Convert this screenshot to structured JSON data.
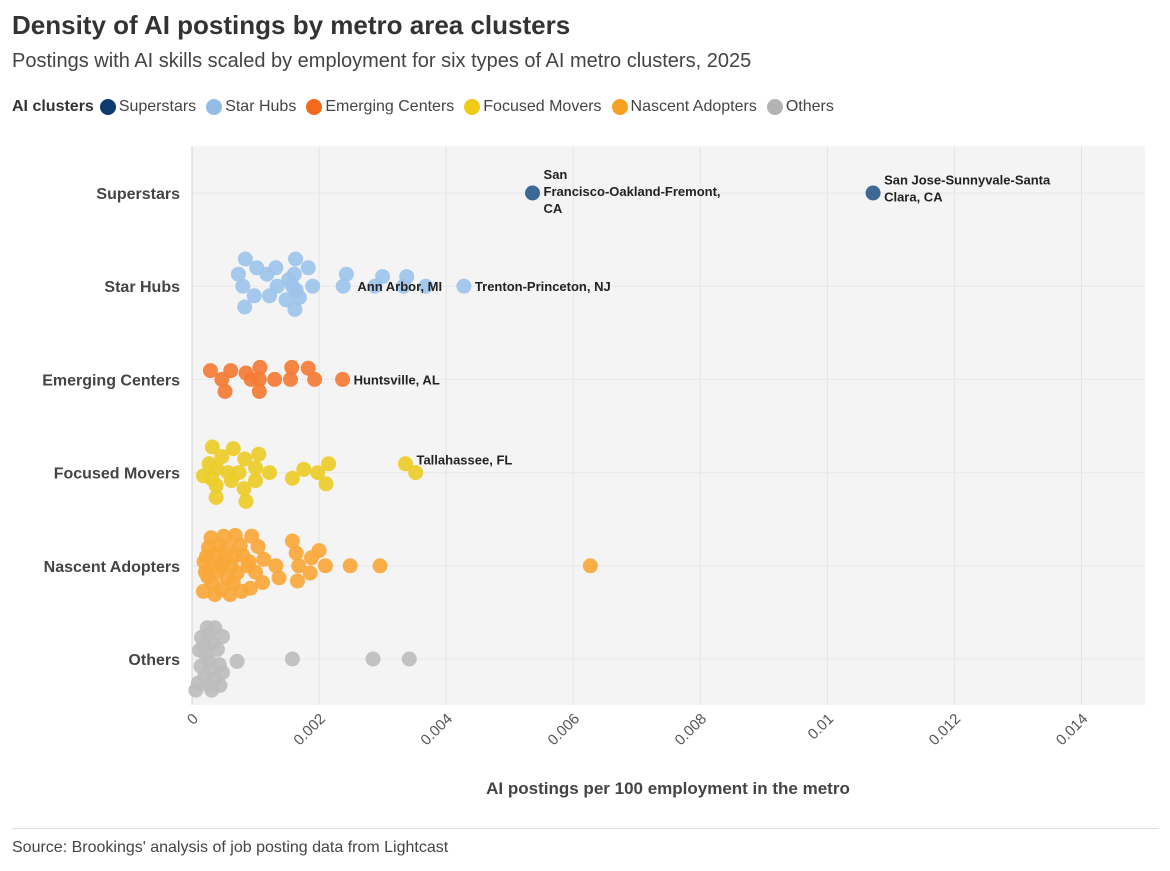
{
  "title": "Density of AI postings by metro area clusters",
  "subtitle": "Postings with AI skills scaled by employment for six types of AI metro clusters, 2025",
  "legend": {
    "title": "AI clusters",
    "items": [
      {
        "label": "Superstars",
        "color": "#0d3b6e"
      },
      {
        "label": "Star Hubs",
        "color": "#93bde8"
      },
      {
        "label": "Emerging Centers",
        "color": "#f26a1b"
      },
      {
        "label": "Focused Movers",
        "color": "#efcb18"
      },
      {
        "label": "Nascent Adopters",
        "color": "#f7a026"
      },
      {
        "label": "Others",
        "color": "#b3b3b3"
      }
    ]
  },
  "source": "Source: Brookings' analysis of job posting data from Lightcast",
  "chart_data": {
    "type": "scatter",
    "title": "Density of AI postings by metro area clusters",
    "xlabel": "AI postings per 100 employment in the metro",
    "ylabel": "",
    "xlim": [
      0,
      0.015
    ],
    "xticks": [
      0,
      0.002,
      0.004,
      0.006,
      0.008,
      0.01,
      0.012,
      0.014
    ],
    "xtick_labels": [
      "0",
      "0.002",
      "0.004",
      "0.006",
      "0.008",
      "0.01",
      "0.012",
      "0.014"
    ],
    "categories": [
      "Superstars",
      "Star Hubs",
      "Emerging Centers",
      "Focused Movers",
      "Nascent Adopters",
      "Others"
    ],
    "series": [
      {
        "name": "Superstars",
        "color": "#2d5a8c",
        "points": [
          {
            "x": 0.00536,
            "j": 0
          },
          {
            "x": 0.01072,
            "j": 0
          }
        ]
      },
      {
        "name": "Star Hubs",
        "color": "#9dc3ec",
        "points": [
          {
            "x": 0.00084,
            "j": -0.34
          },
          {
            "x": 0.00163,
            "j": -0.34
          },
          {
            "x": 0.00102,
            "j": -0.23
          },
          {
            "x": 0.00132,
            "j": -0.23
          },
          {
            "x": 0.00183,
            "j": -0.23
          },
          {
            "x": 0.00073,
            "j": -0.15
          },
          {
            "x": 0.00118,
            "j": -0.15
          },
          {
            "x": 0.00161,
            "j": -0.15
          },
          {
            "x": 0.00243,
            "j": -0.15
          },
          {
            "x": 0.00152,
            "j": -0.08
          },
          {
            "x": 0.003,
            "j": -0.12
          },
          {
            "x": 0.00338,
            "j": -0.12
          },
          {
            "x": 0.0008,
            "j": 0
          },
          {
            "x": 0.00134,
            "j": 0
          },
          {
            "x": 0.00158,
            "j": 0
          },
          {
            "x": 0.0019,
            "j": 0
          },
          {
            "x": 0.00238,
            "j": 0
          },
          {
            "x": 0.00288,
            "j": 0
          },
          {
            "x": 0.00333,
            "j": 0
          },
          {
            "x": 0.00368,
            "j": 0
          },
          {
            "x": 0.00428,
            "j": 0
          },
          {
            "x": 0.00098,
            "j": 0.12
          },
          {
            "x": 0.00122,
            "j": 0.12
          },
          {
            "x": 0.00164,
            "j": 0.05
          },
          {
            "x": 0.00148,
            "j": 0.17
          },
          {
            "x": 0.00169,
            "j": 0.14
          },
          {
            "x": 0.00083,
            "j": 0.26
          },
          {
            "x": 0.00162,
            "j": 0.29
          }
        ]
      },
      {
        "name": "Emerging Centers",
        "color": "#f47b35",
        "points": [
          {
            "x": 0.00029,
            "j": -0.11
          },
          {
            "x": 0.00061,
            "j": -0.11
          },
          {
            "x": 0.00085,
            "j": -0.08
          },
          {
            "x": 0.00107,
            "j": -0.15
          },
          {
            "x": 0.00157,
            "j": -0.15
          },
          {
            "x": 0.00183,
            "j": -0.14
          },
          {
            "x": 0.00047,
            "j": 0
          },
          {
            "x": 0.00093,
            "j": 0
          },
          {
            "x": 0.00106,
            "j": 0
          },
          {
            "x": 0.0013,
            "j": 0
          },
          {
            "x": 0.00155,
            "j": 0
          },
          {
            "x": 0.00193,
            "j": 0
          },
          {
            "x": 0.00237,
            "j": 0
          },
          {
            "x": 0.00052,
            "j": 0.15
          },
          {
            "x": 0.00106,
            "j": 0.15
          }
        ]
      },
      {
        "name": "Focused Movers",
        "color": "#eccc28",
        "points": [
          {
            "x": 0.00032,
            "j": -0.32
          },
          {
            "x": 0.00065,
            "j": -0.3
          },
          {
            "x": 0.00105,
            "j": -0.23
          },
          {
            "x": 0.00047,
            "j": -0.2
          },
          {
            "x": 0.00083,
            "j": -0.17
          },
          {
            "x": 0.00027,
            "j": -0.11
          },
          {
            "x": 0.001,
            "j": -0.06
          },
          {
            "x": 0.00215,
            "j": -0.11
          },
          {
            "x": 0.00336,
            "j": -0.11
          },
          {
            "x": 0.00039,
            "j": -0.05
          },
          {
            "x": 0.00057,
            "j": 0
          },
          {
            "x": 0.00074,
            "j": 0
          },
          {
            "x": 0.00122,
            "j": 0
          },
          {
            "x": 0.00176,
            "j": -0.04
          },
          {
            "x": 0.00198,
            "j": 0
          },
          {
            "x": 0.00352,
            "j": 0
          },
          {
            "x": 0.00018,
            "j": 0.04
          },
          {
            "x": 0.00031,
            "j": 0.08
          },
          {
            "x": 0.00062,
            "j": 0.1
          },
          {
            "x": 0.001,
            "j": 0.1
          },
          {
            "x": 0.00158,
            "j": 0.07
          },
          {
            "x": 0.00211,
            "j": 0.14
          },
          {
            "x": 0.00038,
            "j": 0.16
          },
          {
            "x": 0.00082,
            "j": 0.2
          },
          {
            "x": 0.00038,
            "j": 0.31
          },
          {
            "x": 0.00085,
            "j": 0.36
          }
        ]
      },
      {
        "name": "Nascent Adopters",
        "color": "#f8a73a",
        "points": [
          {
            "x": 0.0003,
            "j": -0.35
          },
          {
            "x": 0.0005,
            "j": -0.37
          },
          {
            "x": 0.00068,
            "j": -0.38
          },
          {
            "x": 0.00094,
            "j": -0.37
          },
          {
            "x": 0.00158,
            "j": -0.31
          },
          {
            "x": 0.00026,
            "j": -0.23
          },
          {
            "x": 0.00042,
            "j": -0.25
          },
          {
            "x": 0.00056,
            "j": -0.22
          },
          {
            "x": 0.00076,
            "j": -0.26
          },
          {
            "x": 0.00104,
            "j": -0.24
          },
          {
            "x": 0.00164,
            "j": -0.16
          },
          {
            "x": 0.002,
            "j": -0.19
          },
          {
            "x": 0.00023,
            "j": -0.12
          },
          {
            "x": 0.00038,
            "j": -0.15
          },
          {
            "x": 0.00052,
            "j": -0.09
          },
          {
            "x": 0.00066,
            "j": -0.12
          },
          {
            "x": 0.0008,
            "j": -0.13
          },
          {
            "x": 0.00113,
            "j": -0.08
          },
          {
            "x": 0.00188,
            "j": -0.1
          },
          {
            "x": 0.00019,
            "j": -0.05
          },
          {
            "x": 0.00045,
            "j": -0.03
          },
          {
            "x": 0.0009,
            "j": -0.05
          },
          {
            "x": 0.0003,
            "j": 0
          },
          {
            "x": 0.00048,
            "j": 0
          },
          {
            "x": 0.00062,
            "j": 0
          },
          {
            "x": 0.00088,
            "j": 0
          },
          {
            "x": 0.00132,
            "j": 0
          },
          {
            "x": 0.00168,
            "j": 0
          },
          {
            "x": 0.0021,
            "j": 0
          },
          {
            "x": 0.00249,
            "j": 0
          },
          {
            "x": 0.00296,
            "j": 0
          },
          {
            "x": 0.00627,
            "j": 0
          },
          {
            "x": 0.00021,
            "j": 0.08
          },
          {
            "x": 0.0004,
            "j": 0.07
          },
          {
            "x": 0.00071,
            "j": 0.09
          },
          {
            "x": 0.001,
            "j": 0.08
          },
          {
            "x": 0.00186,
            "j": 0.09
          },
          {
            "x": 0.00025,
            "j": 0.14
          },
          {
            "x": 0.00055,
            "j": 0.16
          },
          {
            "x": 0.00137,
            "j": 0.15
          },
          {
            "x": 0.00166,
            "j": 0.19
          },
          {
            "x": 0.00032,
            "j": 0.22
          },
          {
            "x": 0.00065,
            "j": 0.21
          },
          {
            "x": 0.00111,
            "j": 0.21
          },
          {
            "x": 0.00018,
            "j": 0.32
          },
          {
            "x": 0.00046,
            "j": 0.3
          },
          {
            "x": 0.00078,
            "j": 0.32
          },
          {
            "x": 0.00092,
            "j": 0.28
          },
          {
            "x": 0.00036,
            "j": 0.36
          },
          {
            "x": 0.0006,
            "j": 0.36
          }
        ]
      },
      {
        "name": "Others",
        "color": "#bdbdbd",
        "points": [
          {
            "x": 0.00024,
            "j": -0.39
          },
          {
            "x": 0.00036,
            "j": -0.39
          },
          {
            "x": 0.00015,
            "j": -0.27
          },
          {
            "x": 0.00027,
            "j": -0.31
          },
          {
            "x": 0.00048,
            "j": -0.28
          },
          {
            "x": 0.00018,
            "j": -0.17
          },
          {
            "x": 0.00032,
            "j": -0.2
          },
          {
            "x": 0.0004,
            "j": -0.12
          },
          {
            "x": 0.00012,
            "j": -0.11
          },
          {
            "x": 0.00022,
            "j": -0.05
          },
          {
            "x": 0.00071,
            "j": 0.03
          },
          {
            "x": 0.00158,
            "j": 0
          },
          {
            "x": 0.00285,
            "j": 0
          },
          {
            "x": 0.00342,
            "j": 0
          },
          {
            "x": 0.00027,
            "j": 0.03
          },
          {
            "x": 0.00043,
            "j": 0.07
          },
          {
            "x": 0.00014,
            "j": 0.09
          },
          {
            "x": 0.0003,
            "j": 0.14
          },
          {
            "x": 0.00048,
            "j": 0.17
          },
          {
            "x": 0.0002,
            "j": 0.22
          },
          {
            "x": 0.00036,
            "j": 0.25
          },
          {
            "x": 0.0001,
            "j": 0.3
          },
          {
            "x": 0.00026,
            "j": 0.32
          },
          {
            "x": 0.00044,
            "j": 0.33
          },
          {
            "x": 6e-05,
            "j": 0.39
          },
          {
            "x": 0.00031,
            "j": 0.39
          }
        ]
      }
    ],
    "annotations": [
      {
        "category": "Superstars",
        "x": 0.00536,
        "text": [
          "San",
          "Francisco-Oakland-Fremont,",
          "CA"
        ],
        "placement": "right-below"
      },
      {
        "category": "Superstars",
        "x": 0.01072,
        "text": [
          "San Jose-Sunnyvale-Santa",
          "Clara, CA"
        ],
        "placement": "right"
      },
      {
        "category": "Star Hubs",
        "x": 0.00243,
        "text": [
          "Ann Arbor, MI"
        ],
        "placement": "right"
      },
      {
        "category": "Star Hubs",
        "x": 0.00428,
        "text": [
          "Trenton-Princeton, NJ"
        ],
        "placement": "right"
      },
      {
        "category": "Emerging Centers",
        "x": 0.00237,
        "text": [
          "Huntsville, AL"
        ],
        "placement": "right"
      },
      {
        "category": "Focused Movers",
        "x": 0.00336,
        "text": [
          "Tallahassee, FL"
        ],
        "placement": "right-above"
      }
    ]
  }
}
